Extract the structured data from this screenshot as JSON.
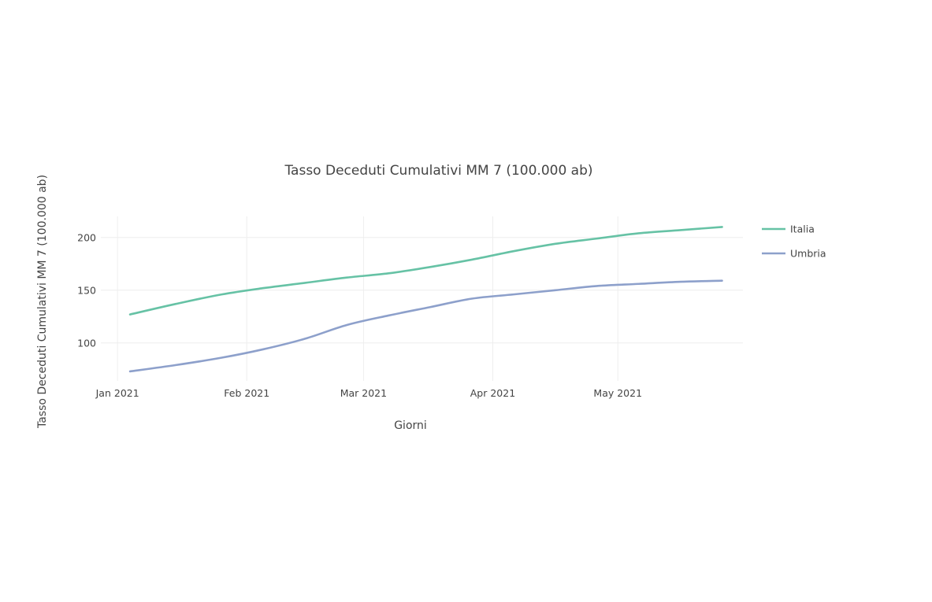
{
  "chart_data": {
    "type": "line",
    "title": "Tasso Deceduti Cumulativi MM 7 (100.000 ab)",
    "xlabel": "Giorni",
    "ylabel": "Tasso Deceduti Cumulativi MM 7 (100.000 ab)",
    "x_type": "date",
    "xlim": [
      "2020-12-28",
      "2021-05-31"
    ],
    "ylim": [
      64,
      220
    ],
    "x_ticks": [
      {
        "value": "2021-01-01",
        "label": "Jan 2021"
      },
      {
        "value": "2021-02-01",
        "label": "Feb 2021"
      },
      {
        "value": "2021-03-01",
        "label": "Mar 2021"
      },
      {
        "value": "2021-04-01",
        "label": "Apr 2021"
      },
      {
        "value": "2021-05-01",
        "label": "May 2021"
      }
    ],
    "y_ticks": [
      100,
      150,
      200
    ],
    "grid": true,
    "legend_position": "right",
    "series": [
      {
        "name": "Italia",
        "color": "#66c2a5",
        "points": [
          [
            "2021-01-04",
            127
          ],
          [
            "2021-01-15",
            137
          ],
          [
            "2021-01-26",
            146
          ],
          [
            "2021-02-05",
            152
          ],
          [
            "2021-02-15",
            157
          ],
          [
            "2021-02-25",
            162
          ],
          [
            "2021-03-07",
            166
          ],
          [
            "2021-03-17",
            172
          ],
          [
            "2021-03-27",
            179
          ],
          [
            "2021-04-06",
            187
          ],
          [
            "2021-04-16",
            194
          ],
          [
            "2021-04-26",
            199
          ],
          [
            "2021-05-06",
            204
          ],
          [
            "2021-05-16",
            207
          ],
          [
            "2021-05-26",
            210
          ]
        ]
      },
      {
        "name": "Umbria",
        "color": "#8da0cb",
        "points": [
          [
            "2021-01-04",
            73
          ],
          [
            "2021-01-15",
            79
          ],
          [
            "2021-01-26",
            86
          ],
          [
            "2021-02-05",
            94
          ],
          [
            "2021-02-15",
            104
          ],
          [
            "2021-02-25",
            117
          ],
          [
            "2021-03-07",
            126
          ],
          [
            "2021-03-17",
            134
          ],
          [
            "2021-03-27",
            142
          ],
          [
            "2021-04-06",
            146
          ],
          [
            "2021-04-16",
            150
          ],
          [
            "2021-04-26",
            154
          ],
          [
            "2021-05-06",
            156
          ],
          [
            "2021-05-16",
            158
          ],
          [
            "2021-05-26",
            159
          ]
        ]
      }
    ]
  }
}
